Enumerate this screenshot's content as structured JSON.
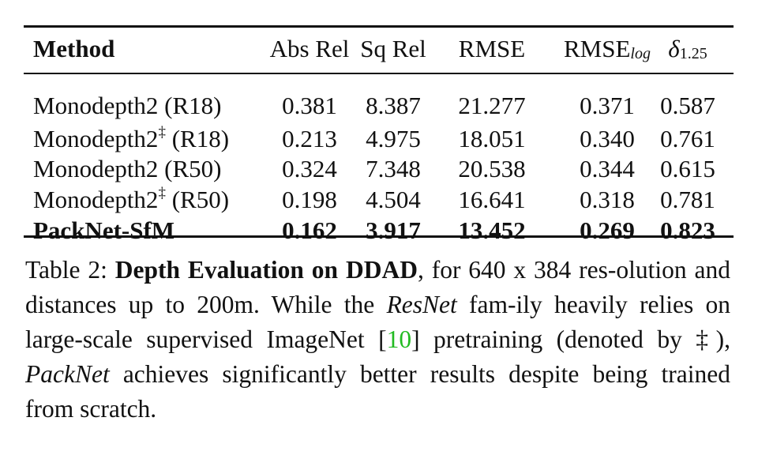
{
  "table": {
    "headers": {
      "method": "Method",
      "abs_rel": "Abs Rel",
      "sq_rel": "Sq Rel",
      "rmse": "RMSE",
      "rmse_log_base": "RMSE",
      "rmse_log_sub": "log",
      "delta_sym": "δ",
      "delta_sub": "1.25"
    },
    "rows": [
      {
        "method": "Monodepth2 (R18)",
        "dagger": "",
        "suffix": "",
        "vals": [
          "0.381",
          "8.387",
          "21.277",
          "0.371",
          "0.587"
        ],
        "bold": false
      },
      {
        "method": "Monodepth2",
        "dagger": "‡",
        "suffix": " (R18)",
        "vals": [
          "0.213",
          "4.975",
          "18.051",
          "0.340",
          "0.761"
        ],
        "bold": false
      },
      {
        "method": "Monodepth2 (R50)",
        "dagger": "",
        "suffix": "",
        "vals": [
          "0.324",
          "7.348",
          "20.538",
          "0.344",
          "0.615"
        ],
        "bold": false
      },
      {
        "method": "Monodepth2",
        "dagger": "‡",
        "suffix": " (R50)",
        "vals": [
          "0.198",
          "4.504",
          "16.641",
          "0.318",
          "0.781"
        ],
        "bold": false
      },
      {
        "method": "PackNet-SfM",
        "dagger": "",
        "suffix": "",
        "vals": [
          "0.162",
          "3.917",
          "13.452",
          "0.269",
          "0.823"
        ],
        "bold": true
      }
    ]
  },
  "caption": {
    "prefix": "Table 2: ",
    "bold_title": "Depth Evaluation on DDAD",
    "text1": ", for 640 x 384 res-olution and distances up to 200m. While the ",
    "resnet": "ResNet",
    "text2": " fam-ily heavily relies on large-scale supervised ImageNet [",
    "cite": "10",
    "text3": "] pretraining (denoted by ‡), ",
    "packnet": "PackNet",
    "text4": " achieves significantly better results despite being trained from scratch."
  }
}
